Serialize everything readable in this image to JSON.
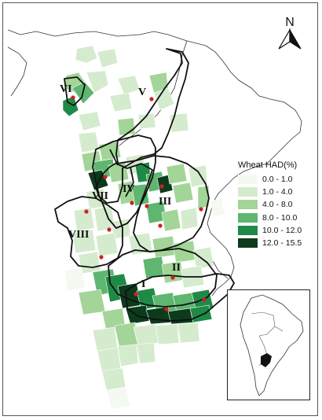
{
  "north_arrow": {
    "label": "N"
  },
  "legend": {
    "title": "Wheat HAD(%)",
    "classes": [
      {
        "label": "0.0 - 1.0",
        "color": "#f4faf2"
      },
      {
        "label": "1.0 - 4.0",
        "color": "#d5ebce"
      },
      {
        "label": "4.0 - 8.0",
        "color": "#a2d597"
      },
      {
        "label": "8.0 - 10.0",
        "color": "#5fb670"
      },
      {
        "label": "10.0 - 12.0",
        "color": "#1f8a47"
      },
      {
        "label": "12.0 - 15.5",
        "color": "#0c3b1c"
      }
    ]
  },
  "regions": [
    {
      "id": "I",
      "label": "I"
    },
    {
      "id": "II",
      "label": "II"
    },
    {
      "id": "III",
      "label": "III"
    },
    {
      "id": "IV",
      "label": "IV"
    },
    {
      "id": "V",
      "label": "V"
    },
    {
      "id": "VI",
      "label": "VI"
    },
    {
      "id": "VII",
      "label": "VII"
    },
    {
      "id": "VIII",
      "label": "VIII"
    }
  ],
  "colors": {
    "site_marker": "#cc2222",
    "region_outline": "#111111",
    "country_border": "#333333"
  }
}
